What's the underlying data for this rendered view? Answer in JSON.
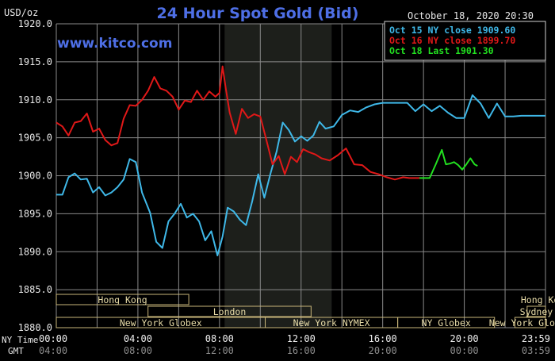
{
  "header": {
    "unit": "USD/oz",
    "title": "24 Hour Spot Gold (Bid)",
    "timestamp": "October 18, 2020 20:30",
    "watermark": "www.kitco.com"
  },
  "legend": [
    {
      "label": "Oct 15 NY close 1909.60",
      "color": "#3fb8e8"
    },
    {
      "label": "Oct 16 NY close 1899.70",
      "color": "#e01818"
    },
    {
      "label": "Oct 18 Last 1901.30",
      "color": "#22e020"
    }
  ],
  "sessions": [
    {
      "label": "Hong Kong",
      "start": 0,
      "end": 6.5,
      "row": 0
    },
    {
      "label": "London",
      "start": 4.5,
      "end": 12.5,
      "row": 1
    },
    {
      "label": "New York Globex",
      "start": 0,
      "end": 10.25,
      "row": 2
    },
    {
      "label": "New York NYMEX",
      "start": 10.25,
      "end": 16.75,
      "row": 2
    },
    {
      "label": "NY Globex",
      "start": 16.75,
      "end": 21.5,
      "row": 2
    },
    {
      "label": "Sydney",
      "start": 23.1,
      "end": 29.6,
      "row": 1
    },
    {
      "label": "Hong Kong",
      "start": 24.2,
      "end": 29.6,
      "row": 0
    },
    {
      "label": "New York Globex",
      "start": 22.5,
      "end": 29.6,
      "row": 2
    }
  ],
  "time_axis": {
    "ny_label": "NY Time",
    "gmt_label": "GMT",
    "ny_ticks": [
      "00:00",
      "04:00",
      "08:00",
      "12:00",
      "16:00",
      "20:00",
      "23:59"
    ],
    "gmt_ticks": [
      "04:00",
      "08:00",
      "12:00",
      "16:00",
      "20:00",
      "00:00",
      "03:59"
    ]
  },
  "chart_data": {
    "type": "line",
    "title": "24 Hour Spot Gold (Bid)",
    "ylabel": "USD/oz",
    "xlabel": "NY Time",
    "ylim": [
      1880,
      1920
    ],
    "xlim": [
      0,
      23.98
    ],
    "yticks": [
      "1920.0",
      "1915.0",
      "1910.0",
      "1905.0",
      "1900.0",
      "1895.0",
      "1890.0",
      "1885.0",
      "1880.0"
    ],
    "grid": true,
    "shaded_region": [
      8.25,
      13.5
    ],
    "series": [
      {
        "name": "Oct 15",
        "color": "#3fb8e8",
        "x": [
          0,
          0.3,
          0.6,
          0.9,
          1.2,
          1.5,
          1.8,
          2.1,
          2.4,
          2.7,
          3,
          3.3,
          3.6,
          3.9,
          4.2,
          4.6,
          4.9,
          5.2,
          5.5,
          5.8,
          6.1,
          6.4,
          6.7,
          7,
          7.3,
          7.6,
          7.9,
          8.15,
          8.4,
          8.7,
          9,
          9.3,
          9.6,
          9.9,
          10.2,
          10.5,
          10.8,
          11.1,
          11.4,
          11.7,
          12,
          12.3,
          12.6,
          12.9,
          13.2,
          13.6,
          14,
          14.4,
          14.8,
          15.2,
          15.6,
          16,
          16.4,
          16.8,
          17.2,
          17.6,
          18,
          18.4,
          18.8,
          19.2,
          19.6,
          20,
          20.4,
          20.8,
          21.2,
          21.6,
          22,
          22.4,
          22.8,
          23.2,
          23.5,
          23.98
        ],
        "values": [
          1897.5,
          1897.5,
          1899.8,
          1900.3,
          1899.5,
          1899.6,
          1897.8,
          1898.5,
          1897.4,
          1897.8,
          1898.5,
          1899.5,
          1902.2,
          1901.8,
          1897.8,
          1895.1,
          1891.3,
          1890.5,
          1894,
          1895,
          1896.3,
          1894.5,
          1895,
          1894,
          1891.5,
          1892.7,
          1889.5,
          1892,
          1895.8,
          1895.3,
          1894.2,
          1893.5,
          1896.6,
          1900.2,
          1897.1,
          1900.3,
          1903.2,
          1907,
          1906,
          1904.5,
          1905.2,
          1904.6,
          1905.3,
          1907.1,
          1906.2,
          1906.5,
          1908,
          1908.6,
          1908.4,
          1909,
          1909.4,
          1909.6,
          1909.6,
          1909.6,
          1909.6,
          1908.5,
          1909.4,
          1908.5,
          1909.2,
          1908.3,
          1907.6,
          1907.6,
          1910.6,
          1909.5,
          1907.6,
          1909.5,
          1907.8,
          1907.8,
          1907.9,
          1907.9,
          1907.9,
          1907.9
        ]
      },
      {
        "name": "Oct 16",
        "color": "#e01818",
        "x": [
          0,
          0.3,
          0.6,
          0.9,
          1.2,
          1.5,
          1.8,
          2.1,
          2.4,
          2.7,
          3,
          3.3,
          3.6,
          3.9,
          4.2,
          4.5,
          4.8,
          5.1,
          5.4,
          5.7,
          6,
          6.3,
          6.6,
          6.9,
          7.2,
          7.5,
          7.8,
          8,
          8.15,
          8.3,
          8.5,
          8.8,
          9.1,
          9.4,
          9.7,
          10,
          10.3,
          10.6,
          10.9,
          11.2,
          11.5,
          11.8,
          12.1,
          12.4,
          12.7,
          13,
          13.4,
          13.8,
          14.2,
          14.6,
          15,
          15.4,
          15.8,
          16.2,
          16.6,
          17,
          17.3,
          17.6,
          17.8
        ],
        "values": [
          1907,
          1906.5,
          1905.3,
          1907,
          1907.2,
          1908.2,
          1905.8,
          1906.2,
          1904.7,
          1904,
          1904.3,
          1907.5,
          1909.3,
          1909.2,
          1910,
          1911.2,
          1913,
          1911.5,
          1911.2,
          1910.4,
          1908.7,
          1909.9,
          1909.7,
          1911.2,
          1910,
          1911.1,
          1910.4,
          1910.9,
          1914.4,
          1911.6,
          1908.3,
          1905.5,
          1908.8,
          1907.6,
          1908.1,
          1907.8,
          1904.7,
          1901.5,
          1902.6,
          1900.2,
          1902.5,
          1901.8,
          1903.5,
          1903.1,
          1902.8,
          1902.3,
          1902,
          1902.7,
          1903.6,
          1901.5,
          1901.4,
          1900.5,
          1900.2,
          1899.8,
          1899.5,
          1899.8,
          1899.7,
          1899.7,
          1899.7
        ]
      },
      {
        "name": "Oct 18",
        "color": "#22e020",
        "x": [
          17.8,
          18.3,
          18.6,
          18.9,
          19.1,
          19.3,
          19.5,
          19.7,
          19.9,
          20.1,
          20.3,
          20.5,
          20.65
        ],
        "values": [
          1899.7,
          1899.7,
          1901.5,
          1903.4,
          1901.5,
          1901.6,
          1901.8,
          1901.4,
          1900.8,
          1901.5,
          1902.3,
          1901.5,
          1901.3
        ]
      }
    ]
  }
}
